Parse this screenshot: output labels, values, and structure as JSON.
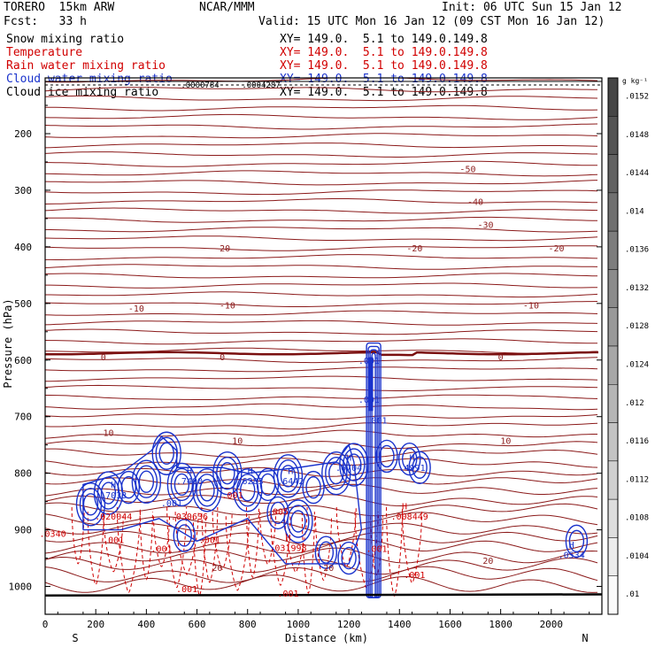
{
  "header": {
    "model": "TORERO  15km ARW",
    "center": "NCAR/MMM",
    "init": "Init: 06 UTC Sun 15 Jan 12",
    "fcst": "Fcst:   33 h",
    "valid": "Valid: 15 UTC Mon 16 Jan 12 (09 CST Mon 16 Jan 12)"
  },
  "fields": [
    {
      "name": "Snow mixing ratio",
      "xy": "XY= 149.0.  5.1 to 149.0.149.8",
      "color": "#000000"
    },
    {
      "name": "Temperature",
      "xy": "XY= 149.0.  5.1 to 149.0.149.8",
      "color": "#d10000"
    },
    {
      "name": "Rain water mixing ratio",
      "xy": "XY= 149.0.  5.1 to 149.0.149.8",
      "color": "#d10000"
    },
    {
      "name": "Cloud water mixing ratio",
      "xy": "XY= 149.0.  5.1 to 149.0.149.8",
      "color": "#1a33cc"
    },
    {
      "name": "Cloud ice mixing ratio",
      "xy": "XY= 149.0.  5.1 to 149.0.149.8",
      "color": "#000000"
    }
  ],
  "chart_data": {
    "type": "line",
    "title": "",
    "xlabel": "Distance (km)",
    "ylabel": "Pressure (hPa)",
    "xlim": [
      0,
      2200
    ],
    "ylim": [
      1030,
      100
    ],
    "x_ticks": [
      0,
      200,
      400,
      600,
      800,
      1000,
      1200,
      1400,
      1600,
      1800,
      2000
    ],
    "y_ticks": [
      200,
      300,
      400,
      500,
      600,
      700,
      800,
      900,
      1000
    ],
    "axis_ends": {
      "left": "S",
      "right": "N"
    },
    "isotherm_labels": [
      {
        "label": "-50",
        "x": 1670,
        "p": 262
      },
      {
        "label": "-40",
        "x": 1700,
        "p": 320
      },
      {
        "label": "-30",
        "x": 1740,
        "p": 360
      },
      {
        "label": "-20",
        "x": 700,
        "p": 402
      },
      {
        "label": "-20",
        "x": 1460,
        "p": 402
      },
      {
        "label": "-20",
        "x": 2020,
        "p": 402
      },
      {
        "label": "-10",
        "x": 360,
        "p": 508
      },
      {
        "label": "-10",
        "x": 720,
        "p": 503
      },
      {
        "label": "-10",
        "x": 1920,
        "p": 503
      },
      {
        "label": "0",
        "x": 230,
        "p": 594
      },
      {
        "label": "0",
        "x": 700,
        "p": 594
      },
      {
        "label": "0",
        "x": 1800,
        "p": 594
      },
      {
        "label": "10",
        "x": 250,
        "p": 728
      },
      {
        "label": "10",
        "x": 760,
        "p": 742
      },
      {
        "label": "10",
        "x": 1820,
        "p": 742
      },
      {
        "label": "20",
        "x": 680,
        "p": 966
      },
      {
        "label": "20",
        "x": 1120,
        "p": 966
      },
      {
        "label": "20",
        "x": 1750,
        "p": 954
      }
    ],
    "cloud_water_labels": [
      {
        "label": ".001",
        "x": 1280,
        "p": 600
      },
      {
        "label": ".001",
        "x": 1280,
        "p": 669
      },
      {
        "label": ".001",
        "x": 1310,
        "p": 706
      },
      {
        "label": ".001",
        "x": 500,
        "p": 852
      },
      {
        "label": "H",
        "x": 270,
        "p": 819
      },
      {
        "label": ".7033",
        "x": 270,
        "p": 838
      },
      {
        "label": "H",
        "x": 570,
        "p": 795
      },
      {
        "label": ".7400",
        "x": 570,
        "p": 813
      },
      {
        "label": "H",
        "x": 810,
        "p": 795
      },
      {
        "label": ".6283",
        "x": 810,
        "p": 813
      },
      {
        "label": "H",
        "x": 970,
        "p": 795
      },
      {
        "label": ".6442",
        "x": 970,
        "p": 813
      },
      {
        "label": "H",
        "x": 1200,
        "p": 772
      },
      {
        "label": ".6704",
        "x": 1200,
        "p": 790
      },
      {
        "label": "H",
        "x": 1450,
        "p": 772
      },
      {
        "label": ".4991",
        "x": 1450,
        "p": 790
      },
      {
        "label": "H",
        "x": 2080,
        "p": 926
      },
      {
        "label": ".0534",
        "x": 2080,
        "p": 944
      }
    ],
    "rain_water_labels": [
      {
        "label": ".020044",
        "x": 270,
        "p": 876
      },
      {
        "label": ".030636",
        "x": 570,
        "p": 876
      },
      {
        "label": ".001",
        "x": 740,
        "p": 838
      },
      {
        "label": ".005",
        "x": 920,
        "p": 867
      },
      {
        "label": "H",
        "x": 960,
        "p": 913
      },
      {
        "label": ".031998",
        "x": 960,
        "p": 931
      },
      {
        "label": "H",
        "x": 1420,
        "p": 858
      },
      {
        "label": ".008449",
        "x": 1440,
        "p": 876
      },
      {
        "label": ".001",
        "x": 270,
        "p": 917
      },
      {
        "label": ".001",
        "x": 460,
        "p": 933
      },
      {
        "label": ".001",
        "x": 650,
        "p": 917
      },
      {
        "label": ".001",
        "x": 1310,
        "p": 933
      },
      {
        "label": ".001",
        "x": 1460,
        "p": 979
      },
      {
        "label": ".001",
        "x": 560,
        "p": 1004
      },
      {
        "label": ".001",
        "x": 960,
        "p": 1012
      },
      {
        "label": ".0340",
        "x": 30,
        "p": 906
      }
    ],
    "snow_top_labels": [
      ".0000784",
      ".0004287"
    ],
    "colorbar": {
      "units": "g kg⁻¹",
      "ticks": [
        ".0152",
        ".0148",
        ".0144",
        ".014",
        ".0136",
        ".0132",
        ".0128",
        ".0124",
        ".012",
        ".0116",
        ".0112",
        ".0108",
        ".0104",
        ".01"
      ]
    }
  }
}
